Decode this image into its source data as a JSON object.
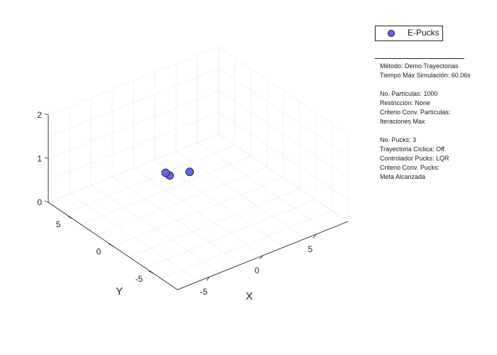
{
  "chart_data": {
    "type": "scatter",
    "dimensions": 3,
    "xlabel": "X",
    "ylabel": "Y",
    "zlabel": "",
    "xlim": [
      -8,
      8
    ],
    "ylim": [
      -8,
      8
    ],
    "zlim": [
      0,
      2
    ],
    "x_ticks": [
      "-5",
      "0",
      "5"
    ],
    "y_ticks": [
      "-5",
      "0",
      "5"
    ],
    "z_ticks": [
      "0",
      "1",
      "2"
    ],
    "grid": true,
    "legend_position": "top-right",
    "marker_color": "#6464f0",
    "series": [
      {
        "name": "E-Pucks",
        "points": [
          {
            "x": 1.5,
            "y": 5.5,
            "z": 0
          },
          {
            "x": 1.5,
            "y": 6.0,
            "z": 0
          },
          {
            "x": 3.0,
            "y": 5.0,
            "z": 0
          }
        ]
      }
    ]
  },
  "legend": {
    "label": "E-Pucks"
  },
  "info_lines": [
    "Método: Demo Trayectorias",
    "Tiempo Máx Simulación: 60.06s",
    "",
    "No. Partículas: 1000",
    "Restricción: None",
    "Criterio Conv. Partículas:",
    "Iteraciones Max",
    "",
    "No. Pucks: 3",
    "Trayectoria Cíclica: Off",
    "Controlador Pucks: LQR",
    "Criterio Conv. Pucks:",
    "Meta Alcanzada"
  ]
}
